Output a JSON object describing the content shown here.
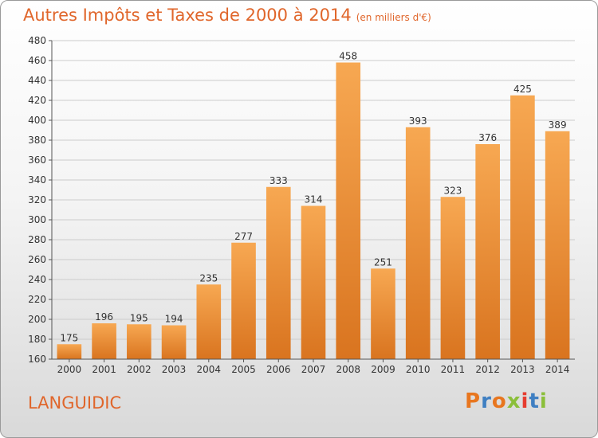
{
  "header": {
    "title": "Autres Impôts et Taxes de 2000 à 2014",
    "unit": "(en milliers d'€)"
  },
  "footer": {
    "commune": "LANGUIDIC",
    "logo_text": "Proxiti",
    "logo_colors": [
      "#e8761f",
      "#3f7fc2",
      "#e8761f",
      "#8bbf3a",
      "#e63c2f",
      "#3f7fc2",
      "#8bbf3a"
    ]
  },
  "colors": {
    "accent": "#e0662b",
    "bar_top": "#f7a852",
    "bar_bottom": "#d9741f",
    "grid": "#cccccc"
  },
  "chart_data": {
    "type": "bar",
    "categories": [
      "2000",
      "2001",
      "2002",
      "2003",
      "2004",
      "2005",
      "2006",
      "2007",
      "2008",
      "2009",
      "2010",
      "2011",
      "2012",
      "2013",
      "2014"
    ],
    "values": [
      175,
      196,
      195,
      194,
      235,
      277,
      333,
      314,
      458,
      251,
      393,
      323,
      376,
      425,
      389
    ],
    "title": "Autres Impôts et Taxes de 2000 à 2014",
    "subtitle": "(en milliers d'€)",
    "xlabel": "",
    "ylabel": "",
    "ylim": [
      160,
      480
    ],
    "yticks": [
      160,
      180,
      200,
      220,
      240,
      260,
      280,
      300,
      320,
      340,
      360,
      380,
      400,
      420,
      440,
      460,
      480
    ],
    "grid": true,
    "data_labels": true
  }
}
